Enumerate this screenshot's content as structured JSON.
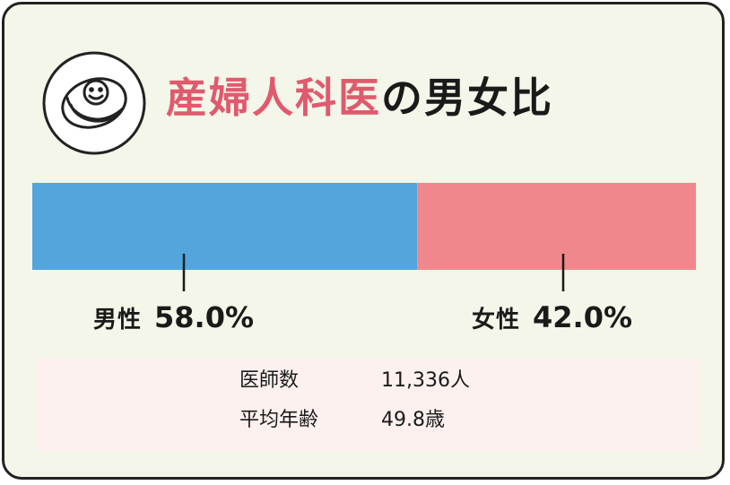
{
  "title": {
    "accent_text": "産婦人科医",
    "rest_text": "の男女比"
  },
  "icon": {
    "name": "swaddled-baby-icon"
  },
  "colors": {
    "male": "#52a6dc",
    "female": "#f0878c",
    "accent": "#e05a6e",
    "card_bg": "#f3f6e8",
    "stats_bg": "#fcf1ef"
  },
  "chart_data": {
    "type": "bar",
    "orientation": "horizontal-stacked",
    "categories": [
      "男性",
      "女性"
    ],
    "values": [
      58.0,
      42.0
    ],
    "value_labels": [
      "58.0%",
      "42.0%"
    ],
    "unit": "%",
    "xlim": [
      0,
      100
    ]
  },
  "labels": {
    "male_name": "男性",
    "male_value": "58.0%",
    "female_name": "女性",
    "female_value": "42.0%"
  },
  "stats": {
    "doctors_label": "医師数",
    "doctors_value": "11,336人",
    "age_label": "平均年齢",
    "age_value": "49.8歳"
  }
}
